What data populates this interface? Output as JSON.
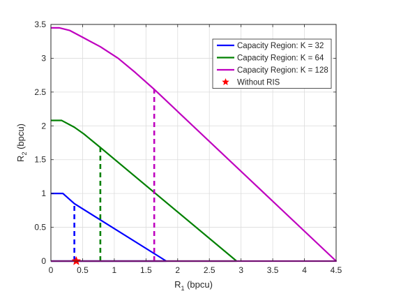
{
  "chart_data": {
    "type": "line",
    "title": "",
    "xlabel": {
      "main": "R",
      "sub": "1",
      "rest": " (bpcu)"
    },
    "ylabel": {
      "main": "R",
      "sub": "2",
      "rest": " (bpcu)"
    },
    "xlim": [
      0,
      4.5
    ],
    "ylim": [
      0,
      3.5
    ],
    "xticks": [
      0,
      0.5,
      1,
      1.5,
      2,
      2.5,
      3,
      3.5,
      4,
      4.5
    ],
    "xtick_labels": [
      "0",
      "0.5",
      "1",
      "1.5",
      "2",
      "2.5",
      "3",
      "3.5",
      "4",
      "4.5"
    ],
    "yticks": [
      0,
      0.5,
      1,
      1.5,
      2,
      2.5,
      3,
      3.5
    ],
    "ytick_labels": [
      "0",
      "0.5",
      "1",
      "1.5",
      "2",
      "2.5",
      "3",
      "3.5"
    ],
    "grid": true,
    "legend_position": "top-right",
    "series": [
      {
        "name": "Capacity Region: K = 32",
        "color": "#0000ff",
        "x": [
          0,
          0.19,
          0.37,
          0.37,
          1.82,
          1.82,
          0
        ],
        "y": [
          1.0,
          1.0,
          0.85,
          0.85,
          0,
          0,
          0
        ],
        "dashed_x": [
          0.37,
          0.37
        ],
        "dashed_y": [
          0,
          0.85
        ]
      },
      {
        "name": "Capacity Region: K = 64",
        "color": "#008000",
        "x": [
          0,
          0.17,
          0.37,
          0.52,
          0.78,
          2.93,
          0
        ],
        "y": [
          2.08,
          2.08,
          1.98,
          1.88,
          1.68,
          0,
          0
        ],
        "dashed_x": [
          0.78,
          0.78
        ],
        "dashed_y": [
          0,
          1.68
        ]
      },
      {
        "name": "Capacity Region: K = 128",
        "color": "#bf00bf",
        "x": [
          0,
          0.13,
          0.3,
          0.5,
          0.78,
          1.06,
          1.33,
          1.63,
          4.5,
          0
        ],
        "y": [
          3.45,
          3.45,
          3.41,
          3.31,
          3.17,
          3.0,
          2.79,
          2.54,
          0,
          0
        ],
        "dashed_x": [
          1.63,
          1.63
        ],
        "dashed_y": [
          0,
          2.54
        ]
      }
    ],
    "marker_series": {
      "name": "Without RIS",
      "color": "#ff0000",
      "marker": "star",
      "x": [
        0.4
      ],
      "y": [
        0
      ]
    }
  }
}
